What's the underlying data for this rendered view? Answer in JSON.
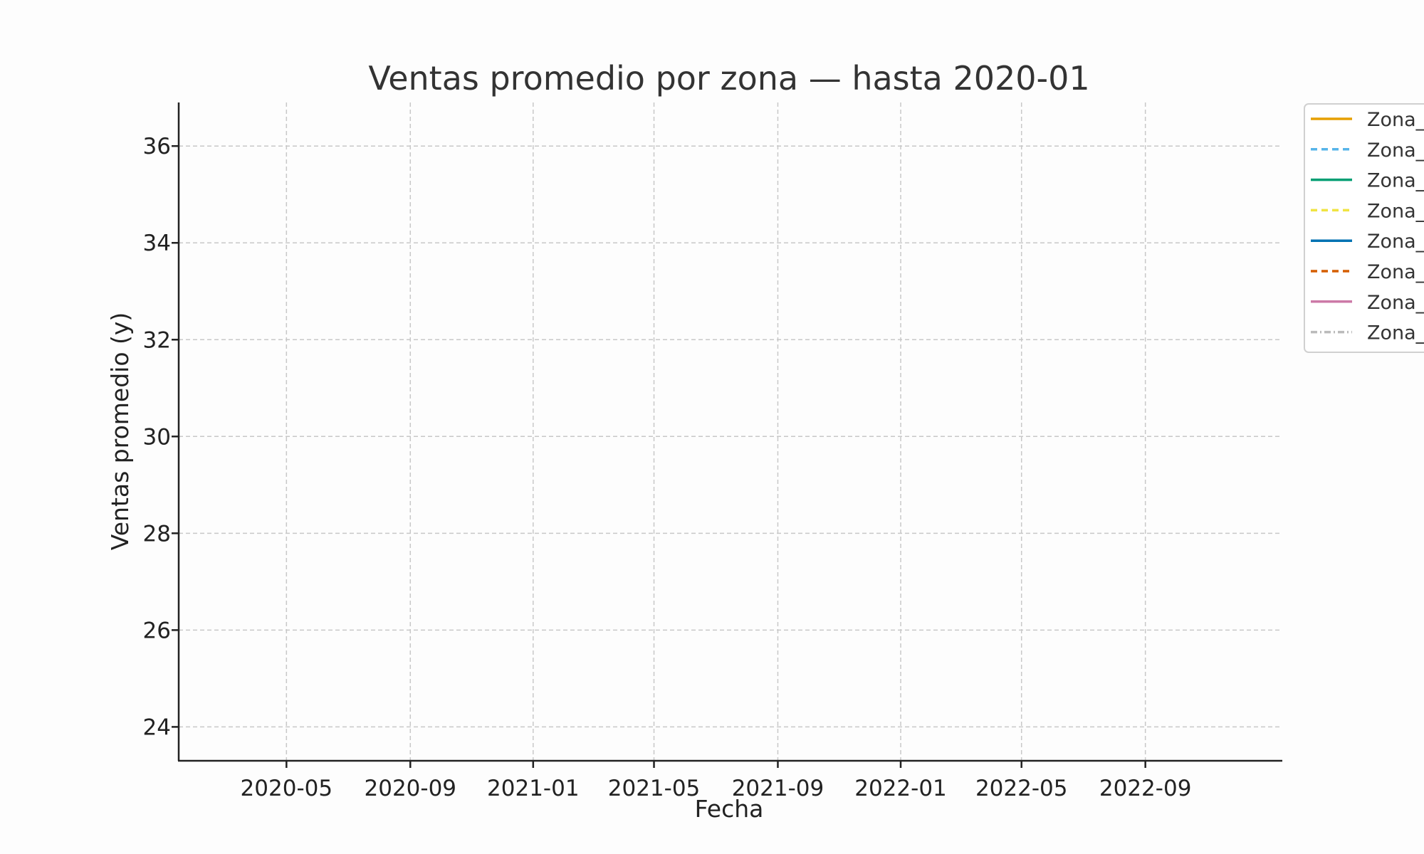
{
  "chart_data": {
    "type": "line",
    "title": "Ventas promedio por zona — hasta 2020-01",
    "xlabel": "Fecha",
    "ylabel": "Ventas promedio (y)",
    "x_ticks": [
      "2020-05",
      "2020-09",
      "2021-01",
      "2021-05",
      "2021-09",
      "2022-01",
      "2022-05",
      "2022-09"
    ],
    "y_ticks": [
      24,
      26,
      28,
      30,
      32,
      34,
      36
    ],
    "ylim": [
      23.3,
      36.9
    ],
    "xlim": [
      "2020-01-15",
      "2023-01-15"
    ],
    "grid": true,
    "legend_position": "top-right (clipped)",
    "series": [
      {
        "name": "Zona_",
        "color": "#E69F00",
        "dash": "solid",
        "values": []
      },
      {
        "name": "Zona_",
        "color": "#56B4E9",
        "dash": "dashed",
        "values": []
      },
      {
        "name": "Zona_",
        "color": "#009E73",
        "dash": "solid",
        "values": []
      },
      {
        "name": "Zona_",
        "color": "#F0E442",
        "dash": "dashed",
        "values": []
      },
      {
        "name": "Zona_",
        "color": "#0072B2",
        "dash": "solid",
        "values": []
      },
      {
        "name": "Zona_",
        "color": "#D55E00",
        "dash": "dashed",
        "values": []
      },
      {
        "name": "Zona_",
        "color": "#CC79A7",
        "dash": "solid",
        "values": []
      },
      {
        "name": "Zona_",
        "color": "#BBBBBB",
        "dash": "dashdot",
        "values": []
      }
    ]
  }
}
